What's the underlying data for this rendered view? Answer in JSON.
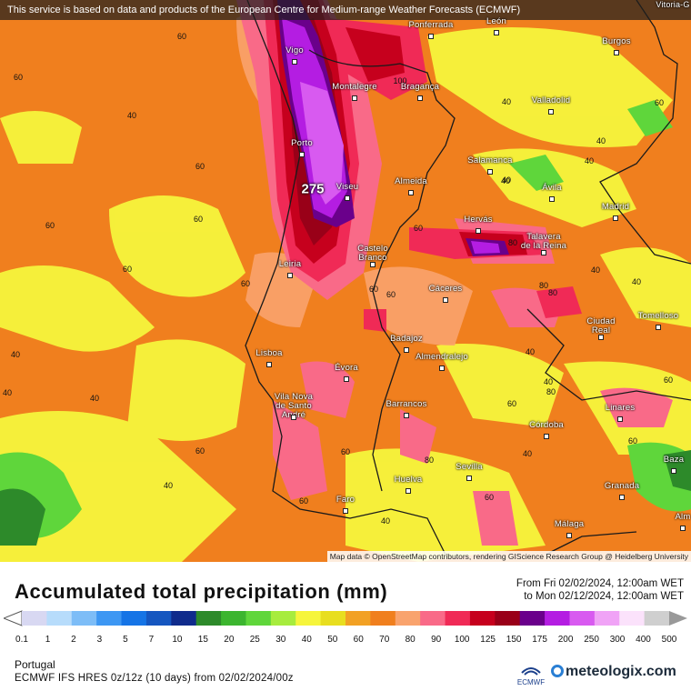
{
  "notice": "This service is based on data and products of the European Centre for Medium-range Weather Forecasts (ECMWF)",
  "attribution": "Map data © OpenStreetMap contributors, rendering GIScience Research Group @ Heidelberg University",
  "map_corner_label": "Vitoria-G",
  "highlight_value": "275",
  "cities": [
    {
      "name": "Ponferrada"
    },
    {
      "name": "León"
    },
    {
      "name": "Burgos"
    },
    {
      "name": "Vigo"
    },
    {
      "name": "Montalegre"
    },
    {
      "name": "Bragança"
    },
    {
      "name": "Valladolid"
    },
    {
      "name": "Porto"
    },
    {
      "name": "Salamanca"
    },
    {
      "name": "Viseu"
    },
    {
      "name": "Almeida"
    },
    {
      "name": "Ávila"
    },
    {
      "name": "Madrid"
    },
    {
      "name": "Hervás"
    },
    {
      "name": "Talavera\nde la Reina"
    },
    {
      "name": "Castelo\nBranco"
    },
    {
      "name": "Leiria"
    },
    {
      "name": "Cáceres"
    },
    {
      "name": "Ciudad\nReal"
    },
    {
      "name": "Tomelloso"
    },
    {
      "name": "Badajoz"
    },
    {
      "name": "Lisboa"
    },
    {
      "name": "Almendralejo"
    },
    {
      "name": "Évora"
    },
    {
      "name": "Vila Nova\nde Santo\nAndré"
    },
    {
      "name": "Barrancos"
    },
    {
      "name": "Linares"
    },
    {
      "name": "Córdoba"
    },
    {
      "name": "Sevilla"
    },
    {
      "name": "Huelva"
    },
    {
      "name": "Faro"
    },
    {
      "name": "Granada"
    },
    {
      "name": "Baza"
    },
    {
      "name": "Málaga"
    },
    {
      "name": "Alm"
    }
  ],
  "contour_labels": [
    "60",
    "60",
    "40",
    "60",
    "60",
    "60",
    "60",
    "60",
    "40",
    "40",
    "40",
    "60",
    "80",
    "80",
    "80",
    "60",
    "60",
    "60",
    "100",
    "60",
    "60",
    "40",
    "60",
    "40",
    "60",
    "40",
    "40",
    "40",
    "80",
    "80",
    "40",
    "40",
    "40",
    "40",
    "60",
    "40",
    "60",
    "60",
    "40",
    "40",
    "60"
  ],
  "legend": {
    "title": "Accumulated total precipitation (mm)",
    "from": "From Fri 02/02/2024, 12:00am WET",
    "to": "to Mon 02/12/2024, 12:00am WET",
    "thresholds": [
      "0.1",
      "1",
      "2",
      "3",
      "5",
      "7",
      "10",
      "15",
      "20",
      "25",
      "30",
      "40",
      "50",
      "60",
      "70",
      "80",
      "90",
      "100",
      "125",
      "150",
      "175",
      "200",
      "250",
      "300",
      "400",
      "500"
    ],
    "colors": [
      "#d8d8f2",
      "#b7dcfb",
      "#7dbdf7",
      "#3d97f3",
      "#1574e6",
      "#1556c0",
      "#102b8c",
      "#2d8a2a",
      "#3cb52f",
      "#5fd63b",
      "#a7ec3e",
      "#f6f53c",
      "#e8de1f",
      "#f2a124",
      "#f07f1e",
      "#f9a36d",
      "#f96a88",
      "#f02a56",
      "#c6001d",
      "#990018",
      "#6a008b",
      "#b41de2",
      "#d85af0",
      "#f0a3f6",
      "#fbe2fb",
      "#cfcfcf"
    ]
  },
  "region": "Portugal",
  "model": "ECMWF IFS HRES 0z/12z (10 days) from 02/02/2024/00z",
  "ecmwf_logo_text": "ECMWF",
  "brand": "meteologix.com"
}
